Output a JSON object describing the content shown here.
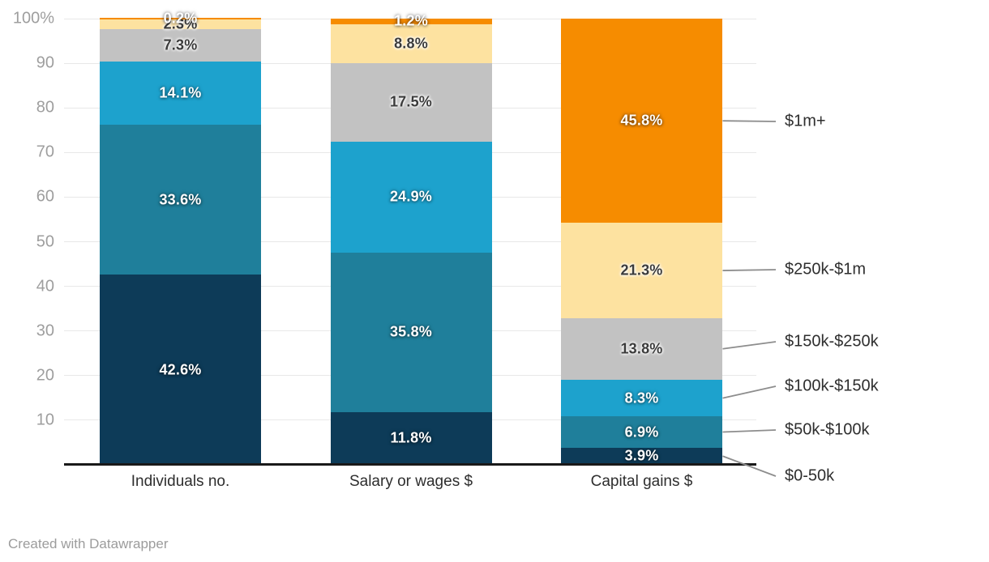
{
  "chart_data": {
    "type": "bar",
    "stacked": true,
    "orientation": "vertical",
    "value_unit": "%",
    "grid": true,
    "categories": [
      "Individuals no.",
      "Salary or wages $",
      "Capital gains $"
    ],
    "series": [
      {
        "name": "$0-50k",
        "color": "#0d3b58",
        "label_style": "light",
        "values": [
          42.6,
          11.8,
          3.9
        ]
      },
      {
        "name": "$50k-$100k",
        "color": "#1f7f9b",
        "label_style": "light",
        "values": [
          33.6,
          35.8,
          6.9
        ]
      },
      {
        "name": "$100k-$150k",
        "color": "#1da2cd",
        "label_style": "light",
        "values": [
          14.1,
          24.9,
          8.3
        ]
      },
      {
        "name": "$150k-$250k",
        "color": "#c2c2c2",
        "label_style": "dark",
        "values": [
          7.3,
          17.5,
          13.8
        ]
      },
      {
        "name": "$250k-$1m",
        "color": "#fde2a0",
        "label_style": "dark",
        "values": [
          2.3,
          8.8,
          21.3
        ]
      },
      {
        "name": "$1m+",
        "color": "#f68c00",
        "label_style": "light",
        "values": [
          0.2,
          1.2,
          45.8
        ]
      }
    ],
    "data_labels": {
      "Individuals no.": [
        "42.6%",
        "33.6%",
        "14.1%",
        "7.3%",
        "2.3%",
        "0.2%"
      ],
      "Salary or wages $": [
        "11.8%",
        "35.8%",
        "24.9%",
        "17.5%",
        "8.8%",
        "1.2%"
      ],
      "Capital gains $": [
        "3.9%",
        "6.9%",
        "8.3%",
        "13.8%",
        "21.3%",
        "45.8%"
      ]
    },
    "y_axis": {
      "range": [
        0,
        100
      ],
      "tick_values": [
        10,
        20,
        30,
        40,
        50,
        60,
        70,
        80,
        90,
        100
      ],
      "tick_labels": [
        "10",
        "20",
        "30",
        "40",
        "50",
        "60",
        "70",
        "80",
        "90",
        "100%"
      ]
    },
    "legend": {
      "position": "right",
      "items_top_to_bottom": [
        "$1m+",
        "$250k-$1m",
        "$150k-$250k",
        "$100k-$150k",
        "$50k-$100k",
        "$0-50k"
      ]
    }
  },
  "footer": {
    "credit": "Created with Datawrapper"
  }
}
